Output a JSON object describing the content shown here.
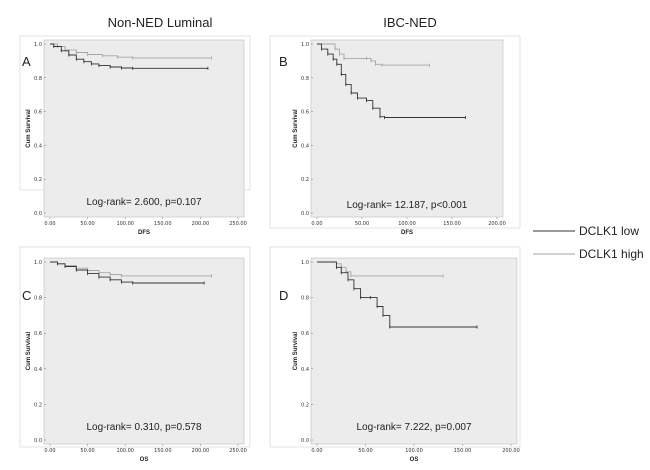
{
  "column_titles": [
    "Non-NED Luminal",
    "IBC-NED"
  ],
  "legend": [
    {
      "label": "DCLK1 low",
      "color": "#333333"
    },
    {
      "label": "DCLK1 high",
      "color": "#a6a6a6"
    }
  ],
  "chart_data": [
    {
      "type": "line",
      "panel": "A",
      "title": "Non-NED Luminal",
      "xlabel": "DFS",
      "ylabel": "Cum Survival",
      "xlim": [
        0,
        250
      ],
      "ylim": [
        0,
        1.0
      ],
      "xticks": [
        "0.00",
        "50.00",
        "100.00",
        "150.00",
        "200.00",
        "250.00"
      ],
      "yticks": [
        "0.0",
        "0.2",
        "0.4",
        "0.6",
        "0.8",
        "1.0"
      ],
      "annotation": "Log-rank= 2.600, p=0.107",
      "series": [
        {
          "name": "DCLK1 low",
          "x": [
            0,
            5,
            15,
            25,
            35,
            45,
            55,
            65,
            80,
            95,
            110,
            210
          ],
          "y": [
            1.0,
            0.985,
            0.96,
            0.935,
            0.91,
            0.895,
            0.882,
            0.872,
            0.864,
            0.858,
            0.856,
            0.856
          ]
        },
        {
          "name": "DCLK1 high",
          "x": [
            0,
            10,
            20,
            35,
            50,
            70,
            90,
            110,
            215
          ],
          "y": [
            1.0,
            0.985,
            0.965,
            0.95,
            0.938,
            0.93,
            0.922,
            0.918,
            0.918
          ]
        }
      ]
    },
    {
      "type": "line",
      "panel": "B",
      "title": "IBC-NED",
      "xlabel": "DFS",
      "ylabel": "Cum Survival",
      "xlim": [
        0,
        200
      ],
      "ylim": [
        0,
        1.0
      ],
      "xticks": [
        "0.00",
        "50.00",
        "100.00",
        "150.00",
        "200.00"
      ],
      "yticks": [
        "0.0",
        "0.2",
        "0.4",
        "0.6",
        "0.8",
        "1.0"
      ],
      "annotation": "Log-rank= 12.187, p<0.001",
      "series": [
        {
          "name": "DCLK1 low",
          "x": [
            0,
            5,
            12,
            18,
            22,
            27,
            32,
            38,
            45,
            55,
            62,
            70,
            75,
            165
          ],
          "y": [
            1.0,
            0.97,
            0.94,
            0.91,
            0.88,
            0.82,
            0.76,
            0.71,
            0.68,
            0.665,
            0.62,
            0.57,
            0.565,
            0.565
          ]
        },
        {
          "name": "DCLK1 high",
          "x": [
            0,
            20,
            25,
            30,
            55,
            60,
            65,
            72,
            125
          ],
          "y": [
            1.0,
            0.97,
            0.94,
            0.915,
            0.915,
            0.9,
            0.88,
            0.875,
            0.875
          ]
        }
      ]
    },
    {
      "type": "line",
      "panel": "C",
      "title": "Non-NED Luminal",
      "xlabel": "OS",
      "ylabel": "Cum Survival",
      "xlim": [
        0,
        250
      ],
      "ylim": [
        0,
        1.0
      ],
      "xticks": [
        "0.00",
        "50.00",
        "100.00",
        "150.00",
        "200.00",
        "250.00"
      ],
      "yticks": [
        "0.0",
        "0.2",
        "0.4",
        "0.6",
        "0.8",
        "1.0"
      ],
      "annotation": "Log-rank= 0.310, p=0.578",
      "series": [
        {
          "name": "DCLK1 low",
          "x": [
            0,
            10,
            20,
            35,
            50,
            65,
            80,
            95,
            110,
            205
          ],
          "y": [
            1.0,
            0.99,
            0.975,
            0.955,
            0.935,
            0.915,
            0.9,
            0.887,
            0.882,
            0.882
          ]
        },
        {
          "name": "DCLK1 high",
          "x": [
            0,
            10,
            20,
            35,
            50,
            65,
            80,
            95,
            215
          ],
          "y": [
            1.0,
            0.99,
            0.98,
            0.965,
            0.952,
            0.94,
            0.93,
            0.922,
            0.922
          ]
        }
      ]
    },
    {
      "type": "line",
      "panel": "D",
      "title": "IBC-NED",
      "xlabel": "OS",
      "ylabel": "Cum Survival",
      "xlim": [
        0,
        200
      ],
      "ylim": [
        0,
        1.0
      ],
      "xticks": [
        "0.00",
        "50.00",
        "100.00",
        "150.00",
        "200.00"
      ],
      "yticks": [
        "0.0",
        "0.2",
        "0.4",
        "0.6",
        "0.8",
        "1.0"
      ],
      "annotation": "Log-rank= 7.222, p=0.007",
      "series": [
        {
          "name": "DCLK1 low",
          "x": [
            0,
            20,
            25,
            32,
            38,
            45,
            55,
            62,
            68,
            75,
            165
          ],
          "y": [
            1.0,
            0.97,
            0.94,
            0.9,
            0.85,
            0.8,
            0.8,
            0.75,
            0.7,
            0.635,
            0.635
          ]
        },
        {
          "name": "DCLK1 high",
          "x": [
            0,
            20,
            25,
            30,
            35,
            130
          ],
          "y": [
            1.0,
            0.99,
            0.97,
            0.945,
            0.922,
            0.922
          ]
        }
      ]
    }
  ]
}
